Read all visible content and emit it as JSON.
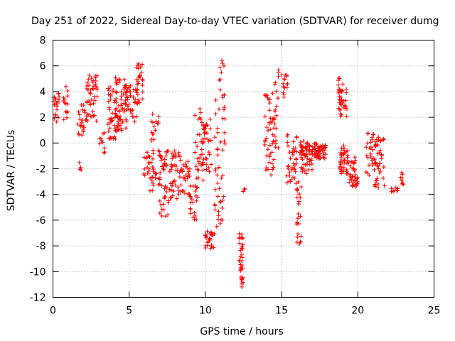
{
  "chart_data": {
    "type": "scatter",
    "title": "Day 251 of 2022, Sidereal Day-to-day VTEC variation (SDTVAR) for receiver dumg",
    "xlabel": "GPS time / hours",
    "ylabel": "SDTVAR / TECUs",
    "xlim": [
      0,
      25
    ],
    "ylim": [
      -12,
      8
    ],
    "xticks": [
      0,
      5,
      10,
      15,
      20,
      25
    ],
    "yticks": [
      -12,
      -10,
      -8,
      -6,
      -4,
      -2,
      0,
      2,
      4,
      6,
      8
    ],
    "grid": true,
    "marker": "plus",
    "color": "#ff0000",
    "clusters": [
      {
        "x": [
          0.0,
          0.35
        ],
        "y": [
          1.2,
          3.6
        ],
        "n": 18
      },
      {
        "x": [
          0.35,
          0.45
        ],
        "y": [
          3.4,
          4.0
        ],
        "n": 4
      },
      {
        "x": [
          0.65,
          1.0
        ],
        "y": [
          1.8,
          4.4
        ],
        "n": 14
      },
      {
        "x": [
          1.7,
          1.85
        ],
        "y": [
          -2.2,
          -1.3
        ],
        "n": 4
      },
      {
        "x": [
          1.6,
          2.2
        ],
        "y": [
          0.4,
          3.0
        ],
        "n": 22
      },
      {
        "x": [
          2.2,
          2.9
        ],
        "y": [
          1.6,
          5.3
        ],
        "n": 45
      },
      {
        "x": [
          3.0,
          3.4
        ],
        "y": [
          -0.8,
          0.8
        ],
        "n": 10
      },
      {
        "x": [
          3.6,
          4.2
        ],
        "y": [
          0.3,
          4.4
        ],
        "n": 40
      },
      {
        "x": [
          4.1,
          4.8
        ],
        "y": [
          0.9,
          5.2
        ],
        "n": 60
      },
      {
        "x": [
          4.8,
          5.5
        ],
        "y": [
          1.6,
          4.8
        ],
        "n": 35
      },
      {
        "x": [
          5.4,
          5.9
        ],
        "y": [
          3.0,
          6.2
        ],
        "n": 30
      },
      {
        "x": [
          5.9,
          6.3
        ],
        "y": [
          -2.8,
          -0.6
        ],
        "n": 12
      },
      {
        "x": [
          6.2,
          7.0
        ],
        "y": [
          -3.8,
          2.4
        ],
        "n": 45
      },
      {
        "x": [
          7.0,
          7.6
        ],
        "y": [
          -5.8,
          -0.6
        ],
        "n": 45
      },
      {
        "x": [
          7.6,
          8.4
        ],
        "y": [
          -4.4,
          -0.6
        ],
        "n": 40
      },
      {
        "x": [
          8.3,
          9.0
        ],
        "y": [
          -4.2,
          -1.4
        ],
        "n": 30
      },
      {
        "x": [
          9.0,
          9.5
        ],
        "y": [
          -6.0,
          -3.2
        ],
        "n": 20
      },
      {
        "x": [
          9.3,
          10.0
        ],
        "y": [
          -3.0,
          2.8
        ],
        "n": 35
      },
      {
        "x": [
          9.8,
          10.4
        ],
        "y": [
          -2.5,
          2.0
        ],
        "n": 30
      },
      {
        "x": [
          10.0,
          10.6
        ],
        "y": [
          -8.2,
          -6.8
        ],
        "n": 25
      },
      {
        "x": [
          10.6,
          11.0
        ],
        "y": [
          -6.5,
          3.5
        ],
        "n": 25
      },
      {
        "x": [
          10.9,
          11.3
        ],
        "y": [
          -6.3,
          6.6
        ],
        "n": 30
      },
      {
        "x": [
          12.2,
          12.5
        ],
        "y": [
          -11.4,
          -7.0
        ],
        "n": 35
      },
      {
        "x": [
          12.4,
          12.6
        ],
        "y": [
          -3.8,
          -3.4
        ],
        "n": 3
      },
      {
        "x": [
          13.9,
          14.5
        ],
        "y": [
          -2.6,
          4.3
        ],
        "n": 45
      },
      {
        "x": [
          14.5,
          14.8
        ],
        "y": [
          -0.4,
          6.3
        ],
        "n": 20
      },
      {
        "x": [
          15.0,
          15.4
        ],
        "y": [
          3.3,
          5.5
        ],
        "n": 15
      },
      {
        "x": [
          15.3,
          16.0
        ],
        "y": [
          -3.2,
          1.1
        ],
        "n": 40
      },
      {
        "x": [
          16.0,
          16.3
        ],
        "y": [
          -8.3,
          -2.8
        ],
        "n": 25
      },
      {
        "x": [
          16.2,
          17.0
        ],
        "y": [
          -2.5,
          0.2
        ],
        "n": 60
      },
      {
        "x": [
          17.0,
          17.9
        ],
        "y": [
          -1.3,
          0.0
        ],
        "n": 60
      },
      {
        "x": [
          18.7,
          19.3
        ],
        "y": [
          1.6,
          5.1
        ],
        "n": 40
      },
      {
        "x": [
          18.8,
          19.4
        ],
        "y": [
          -2.4,
          -0.2
        ],
        "n": 40
      },
      {
        "x": [
          19.4,
          20.0
        ],
        "y": [
          -3.4,
          -1.0
        ],
        "n": 35
      },
      {
        "x": [
          20.5,
          21.2
        ],
        "y": [
          -2.5,
          0.8
        ],
        "n": 30
      },
      {
        "x": [
          21.1,
          21.8
        ],
        "y": [
          -3.5,
          0.6
        ],
        "n": 40
      },
      {
        "x": [
          22.2,
          22.7
        ],
        "y": [
          -4.0,
          -3.4
        ],
        "n": 8
      },
      {
        "x": [
          22.8,
          23.0
        ],
        "y": [
          -3.6,
          -2.1
        ],
        "n": 8
      }
    ]
  }
}
